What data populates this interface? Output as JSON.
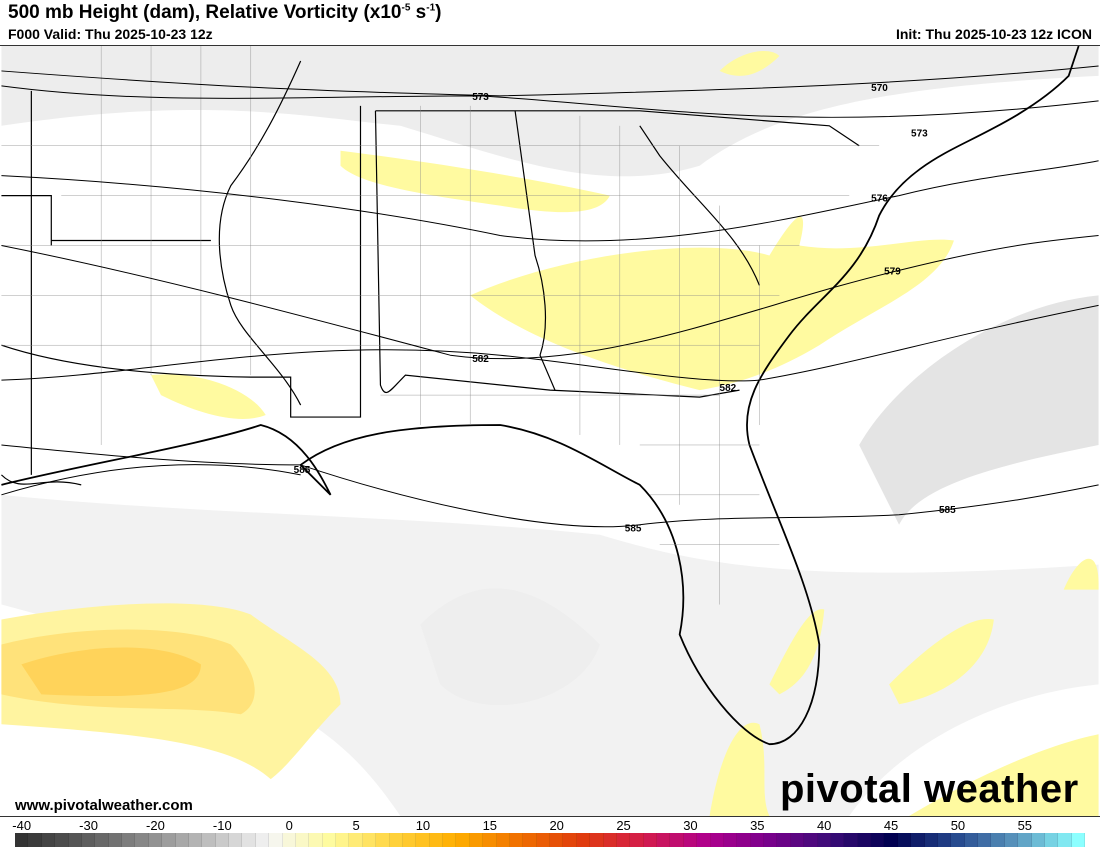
{
  "header": {
    "title_main": "500 mb Height (dam), Relative Vorticity (x10",
    "title_exp1": "-5",
    "title_mid": " s",
    "title_exp2": "-1",
    "title_end": ")",
    "valid": "F000 Valid: Thu 2025-10-23 12z",
    "init": "Init: Thu 2025-10-23 12z ICON"
  },
  "map": {
    "contour_labels": [
      "570",
      "573",
      "573",
      "576",
      "579",
      "582",
      "582",
      "585",
      "585",
      "585"
    ]
  },
  "footer": {
    "website": "www.pivotalweather.com",
    "logo": "pivotal weather"
  },
  "colorbar": {
    "ticks": [
      "-40",
      "-30",
      "-20",
      "-10",
      "0",
      "5",
      "10",
      "15",
      "20",
      "25",
      "30",
      "35",
      "40",
      "45",
      "50",
      "55"
    ],
    "tick_values": [
      -40,
      -30,
      -20,
      -10,
      0,
      5,
      10,
      15,
      20,
      25,
      30,
      35,
      40,
      45,
      50,
      55
    ],
    "color_stops": [
      "#333333",
      "#5a5a5a",
      "#8a8a8a",
      "#bdbdbd",
      "#f5f5f5",
      "#fffb9a",
      "#ffd23c",
      "#ffae00",
      "#f07000",
      "#e03c0c",
      "#d41c4a",
      "#b0008c",
      "#7a008c",
      "#3c0c78",
      "#000050",
      "#24468c",
      "#5a96be",
      "#8cffff"
    ]
  }
}
